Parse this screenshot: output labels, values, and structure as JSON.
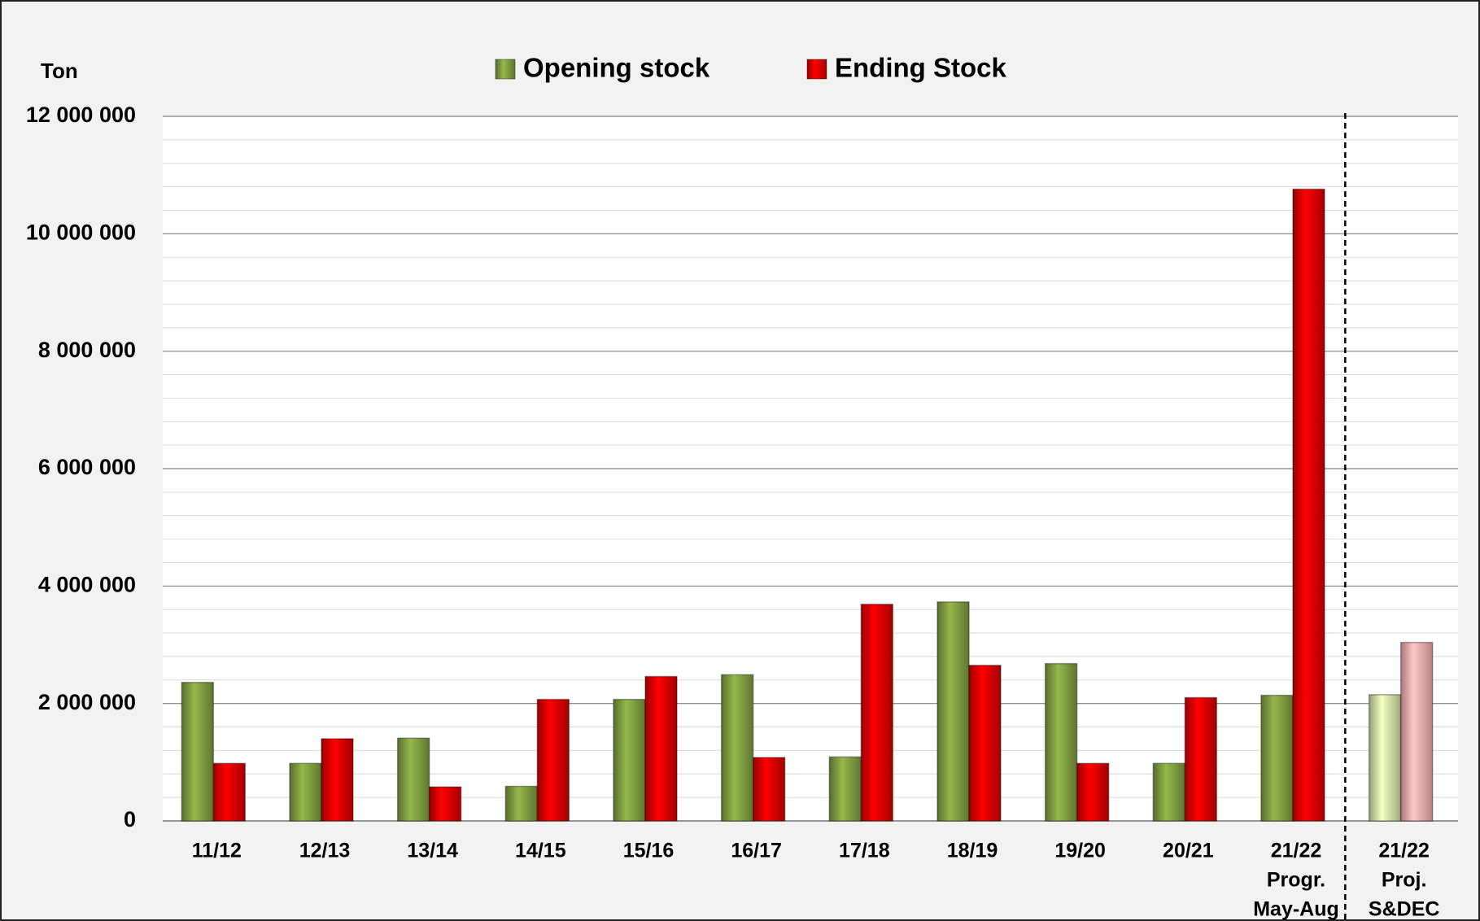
{
  "chart_data": {
    "type": "bar",
    "y_axis_label": "Ton",
    "categories": [
      [
        "11/12"
      ],
      [
        "12/13"
      ],
      [
        "13/14"
      ],
      [
        "14/15"
      ],
      [
        "15/16"
      ],
      [
        "16/17"
      ],
      [
        "17/18"
      ],
      [
        "18/19"
      ],
      [
        "19/20"
      ],
      [
        "20/21"
      ],
      [
        "21/22",
        "Progr.",
        "May-Aug"
      ],
      [
        "21/22",
        "Proj.",
        "S&DEC"
      ]
    ],
    "series": [
      {
        "name": "Opening stock",
        "color": "#77933c",
        "colors": [
          "#77933c",
          "#77933c",
          "#77933c",
          "#77933c",
          "#77933c",
          "#77933c",
          "#77933c",
          "#77933c",
          "#77933c",
          "#77933c",
          "#77933c",
          "#c3d69b"
        ],
        "values": [
          2360000,
          980000,
          1410000,
          590000,
          2070000,
          2490000,
          1090000,
          3730000,
          2680000,
          980000,
          2140000,
          2150000
        ]
      },
      {
        "name": "Ending Stock",
        "color": "#cc0000",
        "colors": [
          "#cc0000",
          "#cc0000",
          "#cc0000",
          "#cc0000",
          "#cc0000",
          "#cc0000",
          "#cc0000",
          "#cc0000",
          "#cc0000",
          "#cc0000",
          "#cc0000",
          "#e6a0a0"
        ],
        "values": [
          980000,
          1400000,
          580000,
          2070000,
          2460000,
          1080000,
          3690000,
          2650000,
          980000,
          2100000,
          10760000,
          3040000
        ]
      }
    ],
    "ylim": [
      0,
      12000000
    ],
    "yticks": [
      0,
      {
        "value": 2000000,
        "label": "2 000 000"
      },
      {
        "value": 4000000,
        "label": "4 000 000"
      },
      {
        "value": 6000000,
        "label": "6 000 000"
      },
      {
        "value": 8000000,
        "label": "8 000 000"
      },
      {
        "value": 10000000,
        "label": "10 000 000"
      },
      {
        "value": 12000000,
        "label": "12 000 000"
      }
    ],
    "grid": true,
    "legend": "top"
  }
}
